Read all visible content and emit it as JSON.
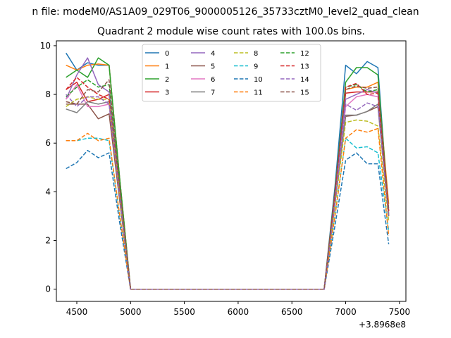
{
  "chart_data": {
    "type": "line",
    "suptitle": "n file: modeM0/AS1A09_029T06_9000005126_35733cztM0_level2_quad_clean",
    "title": "Quadrant 2 module wise count rates with 100.0s bins.",
    "xlabel": "",
    "ylabel": "",
    "x_offset_label": "+3.8968e8",
    "xlim": [
      4310,
      7560
    ],
    "ylim": [
      -0.5,
      10.2
    ],
    "x_ticks": [
      4500,
      5000,
      5500,
      6000,
      6500,
      7000,
      7500
    ],
    "y_ticks": [
      0,
      2,
      4,
      6,
      8,
      10
    ],
    "grid": false,
    "legend_position": "upper center, 4 columns",
    "x": [
      4400,
      4500,
      4600,
      4700,
      4800,
      4900,
      5000,
      5100,
      5200,
      5300,
      5400,
      5500,
      5600,
      5700,
      5800,
      5900,
      6000,
      6100,
      6200,
      6300,
      6400,
      6500,
      6600,
      6700,
      6800,
      6900,
      7000,
      7100,
      7200,
      7300,
      7400
    ],
    "series": [
      {
        "name": "0",
        "color": "#1f77b4",
        "dash": "solid",
        "values": [
          9.7,
          9.0,
          9.3,
          9.2,
          9.2,
          4.5,
          0,
          0,
          0,
          0,
          0,
          0,
          0,
          0,
          0,
          0,
          0,
          0,
          0,
          0,
          0,
          0,
          0,
          0,
          0,
          4.2,
          9.2,
          8.85,
          9.35,
          9.1,
          3.0
        ]
      },
      {
        "name": "1",
        "color": "#ff7f0e",
        "dash": "solid",
        "values": [
          9.2,
          9.0,
          9.2,
          9.25,
          9.2,
          4.5,
          0,
          0,
          0,
          0,
          0,
          0,
          0,
          0,
          0,
          0,
          0,
          0,
          0,
          0,
          0,
          0,
          0,
          0,
          0,
          3.8,
          8.2,
          8.3,
          8.3,
          8.5,
          3.5
        ]
      },
      {
        "name": "2",
        "color": "#2ca02c",
        "dash": "solid",
        "values": [
          8.7,
          9.0,
          8.7,
          9.5,
          9.2,
          4.5,
          0,
          0,
          0,
          0,
          0,
          0,
          0,
          0,
          0,
          0,
          0,
          0,
          0,
          0,
          0,
          0,
          0,
          0,
          0,
          4.0,
          8.5,
          9.1,
          9.1,
          8.8,
          3.1
        ]
      },
      {
        "name": "3",
        "color": "#d62728",
        "dash": "solid",
        "values": [
          8.2,
          8.5,
          7.7,
          7.8,
          8.0,
          4.0,
          0,
          0,
          0,
          0,
          0,
          0,
          0,
          0,
          0,
          0,
          0,
          0,
          0,
          0,
          0,
          0,
          0,
          0,
          0,
          3.8,
          8.05,
          8.1,
          8.1,
          8.1,
          3.2
        ]
      },
      {
        "name": "4",
        "color": "#9467bd",
        "dash": "solid",
        "values": [
          7.8,
          8.8,
          9.5,
          8.4,
          8.1,
          4.0,
          0,
          0,
          0,
          0,
          0,
          0,
          0,
          0,
          0,
          0,
          0,
          0,
          0,
          0,
          0,
          0,
          0,
          0,
          0,
          3.7,
          7.8,
          8.0,
          8.2,
          8.05,
          3.0
        ]
      },
      {
        "name": "5",
        "color": "#8c564b",
        "dash": "solid",
        "values": [
          7.6,
          7.6,
          7.6,
          7.0,
          7.2,
          3.6,
          0,
          0,
          0,
          0,
          0,
          0,
          0,
          0,
          0,
          0,
          0,
          0,
          0,
          0,
          0,
          0,
          0,
          0,
          0,
          3.5,
          7.1,
          7.15,
          7.3,
          7.5,
          3.0
        ]
      },
      {
        "name": "6",
        "color": "#e377c2",
        "dash": "solid",
        "values": [
          7.8,
          8.4,
          7.5,
          7.5,
          7.6,
          3.8,
          0,
          0,
          0,
          0,
          0,
          0,
          0,
          0,
          0,
          0,
          0,
          0,
          0,
          0,
          0,
          0,
          0,
          0,
          0,
          3.6,
          7.5,
          7.9,
          8.0,
          7.9,
          3.0
        ]
      },
      {
        "name": "7",
        "color": "#7f7f7f",
        "dash": "solid",
        "values": [
          7.4,
          7.25,
          7.7,
          7.6,
          7.7,
          3.8,
          0,
          0,
          0,
          0,
          0,
          0,
          0,
          0,
          0,
          0,
          0,
          0,
          0,
          0,
          0,
          0,
          0,
          0,
          0,
          3.5,
          7.15,
          7.15,
          7.3,
          7.6,
          3.0
        ]
      },
      {
        "name": "8",
        "color": "#bcbd22",
        "dash": "dashed",
        "values": [
          7.5,
          7.8,
          7.9,
          7.8,
          7.8,
          3.8,
          0,
          0,
          0,
          0,
          0,
          0,
          0,
          0,
          0,
          0,
          0,
          0,
          0,
          0,
          0,
          0,
          0,
          0,
          0,
          3.4,
          6.85,
          6.95,
          6.9,
          6.7,
          2.8
        ]
      },
      {
        "name": "9",
        "color": "#17becf",
        "dash": "dashed",
        "values": [
          6.1,
          6.1,
          6.2,
          6.2,
          6.1,
          3.0,
          0,
          0,
          0,
          0,
          0,
          0,
          0,
          0,
          0,
          0,
          0,
          0,
          0,
          0,
          0,
          0,
          0,
          0,
          0,
          3.0,
          6.2,
          5.8,
          5.85,
          5.6,
          2.4
        ]
      },
      {
        "name": "10",
        "color": "#1f77b4",
        "dash": "dashed",
        "values": [
          4.95,
          5.2,
          5.7,
          5.4,
          5.6,
          2.7,
          0,
          0,
          0,
          0,
          0,
          0,
          0,
          0,
          0,
          0,
          0,
          0,
          0,
          0,
          0,
          0,
          0,
          0,
          0,
          2.6,
          5.3,
          5.6,
          5.15,
          5.15,
          1.85
        ]
      },
      {
        "name": "11",
        "color": "#ff7f0e",
        "dash": "dashed",
        "values": [
          6.1,
          6.1,
          6.4,
          6.1,
          6.2,
          3.0,
          0,
          0,
          0,
          0,
          0,
          0,
          0,
          0,
          0,
          0,
          0,
          0,
          0,
          0,
          0,
          0,
          0,
          0,
          0,
          3.0,
          6.2,
          6.55,
          6.45,
          6.6,
          2.2
        ]
      },
      {
        "name": "12",
        "color": "#2ca02c",
        "dash": "dashed",
        "values": [
          7.9,
          8.3,
          8.6,
          8.3,
          8.4,
          4.2,
          0,
          0,
          0,
          0,
          0,
          0,
          0,
          0,
          0,
          0,
          0,
          0,
          0,
          0,
          0,
          0,
          0,
          0,
          0,
          4.0,
          8.3,
          8.4,
          8.1,
          8.2,
          3.2
        ]
      },
      {
        "name": "13",
        "color": "#d62728",
        "dash": "dashed",
        "values": [
          8.2,
          8.7,
          8.3,
          8.0,
          7.8,
          3.9,
          0,
          0,
          0,
          0,
          0,
          0,
          0,
          0,
          0,
          0,
          0,
          0,
          0,
          0,
          0,
          0,
          0,
          0,
          0,
          3.9,
          8.3,
          8.45,
          8.0,
          8.05,
          3.2
        ]
      },
      {
        "name": "14",
        "color": "#9467bd",
        "dash": "dashed",
        "values": [
          8.0,
          7.5,
          7.9,
          7.9,
          7.6,
          3.8,
          0,
          0,
          0,
          0,
          0,
          0,
          0,
          0,
          0,
          0,
          0,
          0,
          0,
          0,
          0,
          0,
          0,
          0,
          0,
          3.5,
          7.6,
          7.35,
          7.65,
          7.5,
          3.0
        ]
      },
      {
        "name": "15",
        "color": "#8c564b",
        "dash": "dashed",
        "values": [
          7.7,
          7.6,
          8.2,
          8.1,
          8.6,
          4.2,
          0,
          0,
          0,
          0,
          0,
          0,
          0,
          0,
          0,
          0,
          0,
          0,
          0,
          0,
          0,
          0,
          0,
          0,
          0,
          4.0,
          8.2,
          8.35,
          8.25,
          8.3,
          3.3
        ]
      }
    ]
  }
}
